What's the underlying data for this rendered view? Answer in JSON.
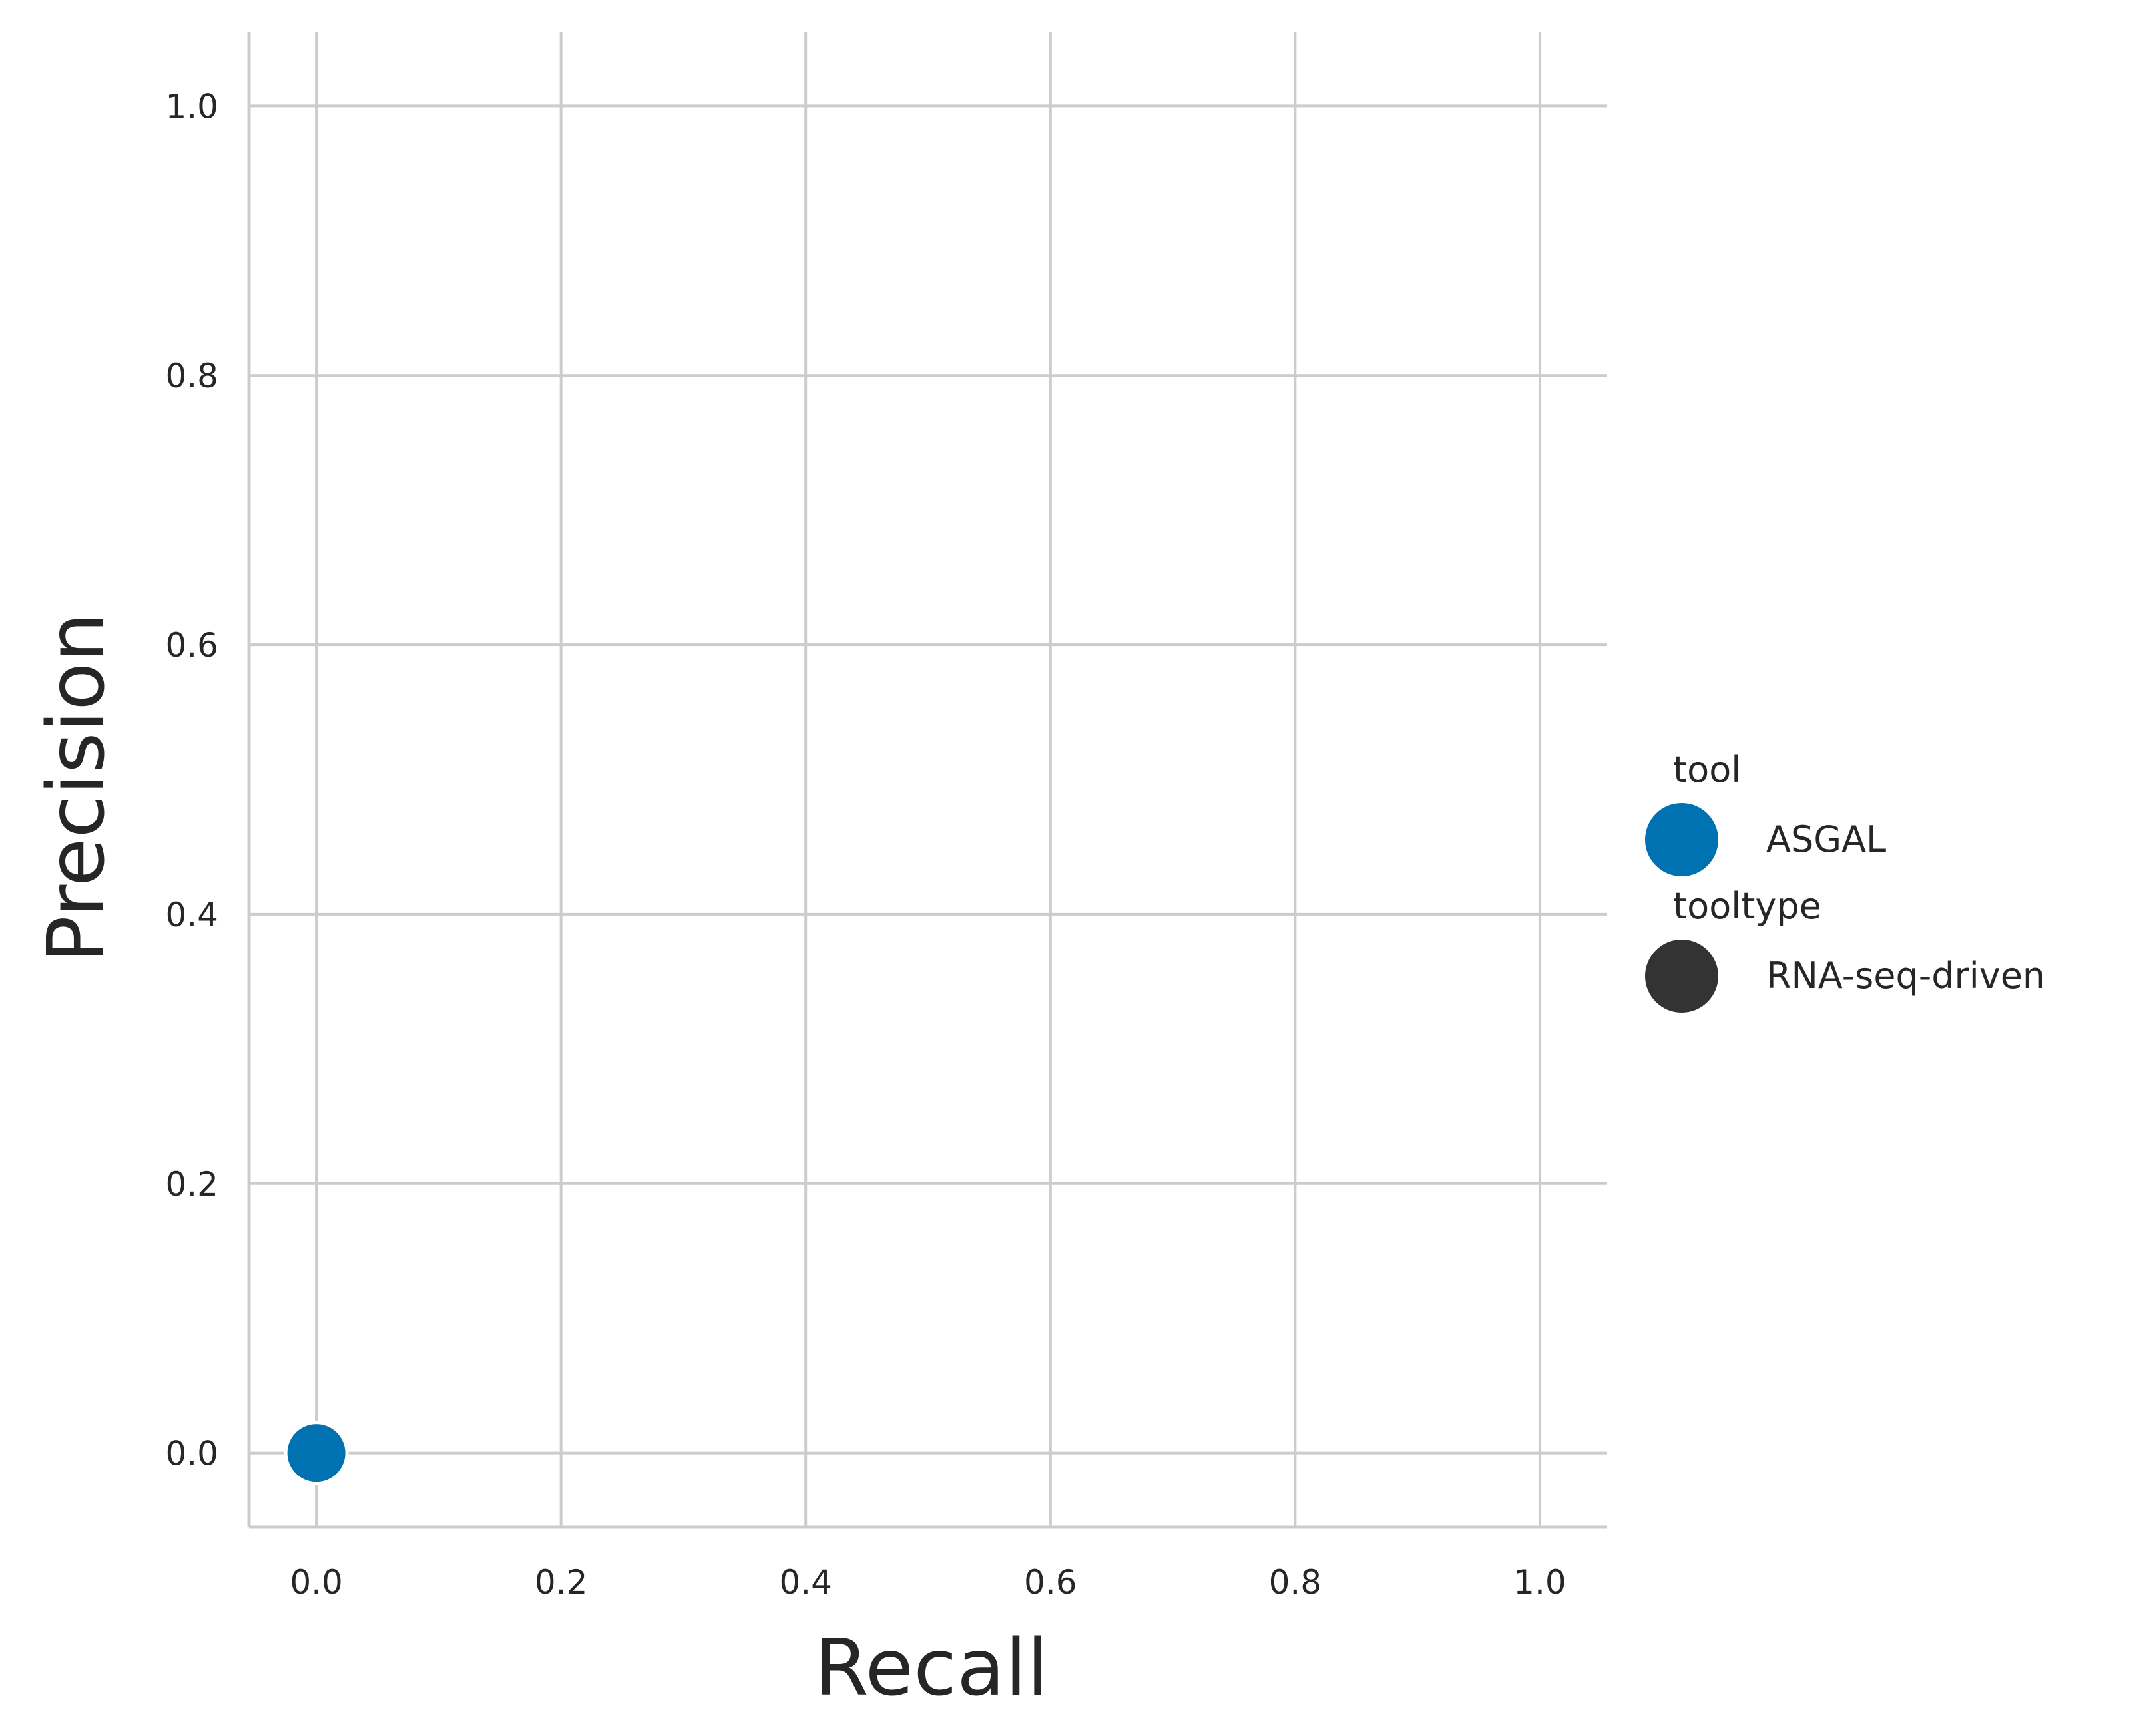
{
  "chart_data": {
    "type": "scatter",
    "title": "",
    "xlabel": "Recall",
    "ylabel": "Precision",
    "xlim": [
      -0.055,
      1.055
    ],
    "ylim": [
      -0.055,
      1.055
    ],
    "xticks": [
      0.0,
      0.2,
      0.4,
      0.6,
      0.8,
      1.0
    ],
    "yticks": [
      0.0,
      0.2,
      0.4,
      0.6,
      0.8,
      1.0
    ],
    "xtick_labels": [
      "0.0",
      "0.2",
      "0.4",
      "0.6",
      "0.8",
      "1.0"
    ],
    "ytick_labels": [
      "0.0",
      "0.2",
      "0.4",
      "0.6",
      "0.8",
      "1.0"
    ],
    "grid": true,
    "series": [
      {
        "name": "ASGAL",
        "tooltype": "RNA-seq-driven",
        "color": "#0072b2",
        "points": [
          {
            "x": 0.0,
            "y": 0.0
          }
        ]
      }
    ],
    "legend": {
      "placement": "right",
      "groups": [
        {
          "title": "tool",
          "entries": [
            {
              "label": "ASGAL",
              "color": "#0072b2"
            }
          ]
        },
        {
          "title": "tooltype",
          "entries": [
            {
              "label": "RNA-seq-driven",
              "color": "#333333"
            }
          ]
        }
      ]
    }
  }
}
